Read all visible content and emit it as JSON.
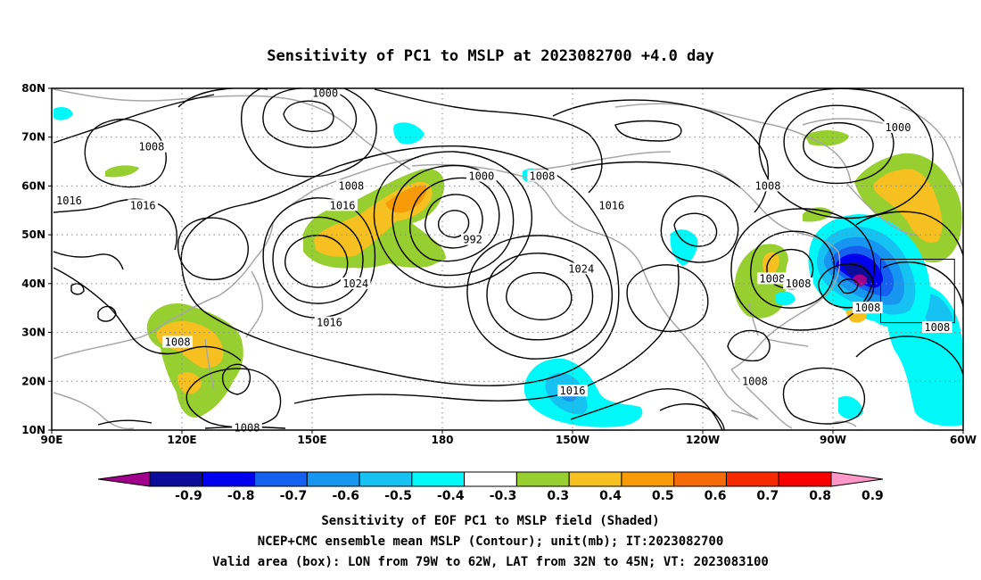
{
  "title": "Sensitivity of PC1 to MSLP at 2023082700 +4.0 day",
  "captions": [
    "Sensitivity of EOF PC1 to MSLP field (Shaded)",
    "NCEP+CMC ensemble mean MSLP (Contour); unit(mb); IT:2023082700",
    "Valid area (box): LON from 79W to 62W, LAT from 32N to 45N; VT: 2023083100"
  ],
  "map": {
    "lon_range": [
      90,
      300
    ],
    "lat_range": [
      10,
      80
    ],
    "x_ticks": [
      {
        "lon": 90,
        "label": "90E"
      },
      {
        "lon": 120,
        "label": "120E"
      },
      {
        "lon": 150,
        "label": "150E"
      },
      {
        "lon": 180,
        "label": "180"
      },
      {
        "lon": 210,
        "label": "150W"
      },
      {
        "lon": 240,
        "label": "120W"
      },
      {
        "lon": 270,
        "label": "90W"
      },
      {
        "lon": 300,
        "label": "60W"
      }
    ],
    "y_ticks": [
      {
        "lat": 10,
        "label": "10N"
      },
      {
        "lat": 20,
        "label": "20N"
      },
      {
        "lat": 30,
        "label": "30N"
      },
      {
        "lat": 40,
        "label": "40N"
      },
      {
        "lat": 50,
        "label": "50N"
      },
      {
        "lat": 60,
        "label": "60N"
      },
      {
        "lat": 70,
        "label": "70N"
      },
      {
        "lat": 80,
        "label": "80N"
      }
    ],
    "valid_box": {
      "lon_min": 281,
      "lon_max": 298,
      "lat_min": 32,
      "lat_max": 45
    },
    "contour_labels": [
      {
        "text": "1000",
        "lon": 153,
        "lat": 79
      },
      {
        "text": "1008",
        "lon": 113,
        "lat": 68
      },
      {
        "text": "1016",
        "lon": 94,
        "lat": 57
      },
      {
        "text": "1016",
        "lon": 111,
        "lat": 56
      },
      {
        "text": "1008",
        "lon": 159,
        "lat": 60
      },
      {
        "text": "1016",
        "lon": 157,
        "lat": 56
      },
      {
        "text": "1000",
        "lon": 189,
        "lat": 62
      },
      {
        "text": "992",
        "lon": 187,
        "lat": 49
      },
      {
        "text": "1008",
        "lon": 203,
        "lat": 62
      },
      {
        "text": "1016",
        "lon": 219,
        "lat": 56
      },
      {
        "text": "1008",
        "lon": 255,
        "lat": 60
      },
      {
        "text": "1000",
        "lon": 285,
        "lat": 72
      },
      {
        "text": "1024",
        "lon": 160,
        "lat": 40
      },
      {
        "text": "1016",
        "lon": 154,
        "lat": 32
      },
      {
        "text": "1024",
        "lon": 212,
        "lat": 43
      },
      {
        "text": "1008",
        "lon": 256,
        "lat": 41
      },
      {
        "text": "1008",
        "lon": 262,
        "lat": 40
      },
      {
        "text": "1008",
        "lon": 278,
        "lat": 35
      },
      {
        "text": "1008",
        "lon": 294,
        "lat": 31
      },
      {
        "text": "1008",
        "lon": 119,
        "lat": 28
      },
      {
        "text": "1016",
        "lon": 210,
        "lat": 18
      },
      {
        "text": "1008",
        "lon": 252,
        "lat": 20
      },
      {
        "text": "1008",
        "lon": 135,
        "lat": 10.5
      }
    ]
  },
  "colorbar": {
    "labels": [
      "-0.9",
      "-0.8",
      "-0.7",
      "-0.6",
      "-0.5",
      "-0.4",
      "-0.3",
      "0.3",
      "0.4",
      "0.5",
      "0.6",
      "0.7",
      "0.8",
      "0.9"
    ],
    "colors": [
      "#a0008a",
      "#0c0c9a",
      "#0000ee",
      "#1660f0",
      "#1696f0",
      "#16c2f2",
      "#00f8f8",
      "#ffffff",
      "#98cf30",
      "#f6c020",
      "#f69a08",
      "#f66a08",
      "#f62a00",
      "#f60000",
      "#ff98c8"
    ]
  }
}
